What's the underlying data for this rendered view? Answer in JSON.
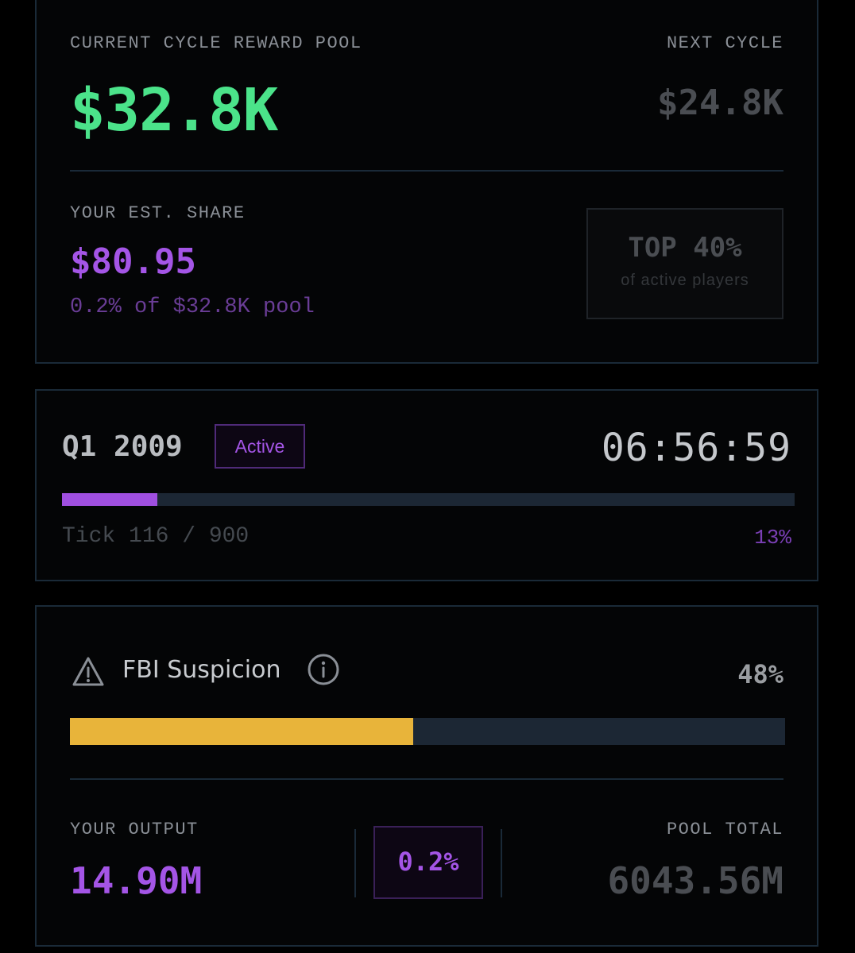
{
  "reward_pool": {
    "current_label": "CURRENT CYCLE REWARD POOL",
    "current_value": "$32.8K",
    "next_label": "NEXT CYCLE",
    "next_value": "$24.8K",
    "share_label": "YOUR EST. SHARE",
    "share_value": "$80.95",
    "share_sub": "0.2% of $32.8K pool",
    "rank_title": "TOP 40%",
    "rank_sub": "of active players"
  },
  "quarter": {
    "title": "Q1 2009",
    "status": "Active",
    "timer": "06:56:59",
    "progress_fraction": 0.13,
    "tick_label": "Tick 116 / 900",
    "progress_pct": "13%"
  },
  "suspicion": {
    "label": "FBI Suspicion",
    "pct": "48%",
    "fraction": 0.48,
    "output_label": "YOUR OUTPUT",
    "output_value": "14.90M",
    "ratio": "0.2%",
    "total_label": "POOL TOTAL",
    "total_value": "6043.56M"
  },
  "icons": {
    "warning": "warning-triangle-icon",
    "info": "info-circle-icon"
  },
  "colors": {
    "pool_green": "#4be38a",
    "accent_purple": "#a455e6",
    "suspicion_yellow": "#e8b43a",
    "track": "#1c2734",
    "border": "#1a2a38"
  }
}
